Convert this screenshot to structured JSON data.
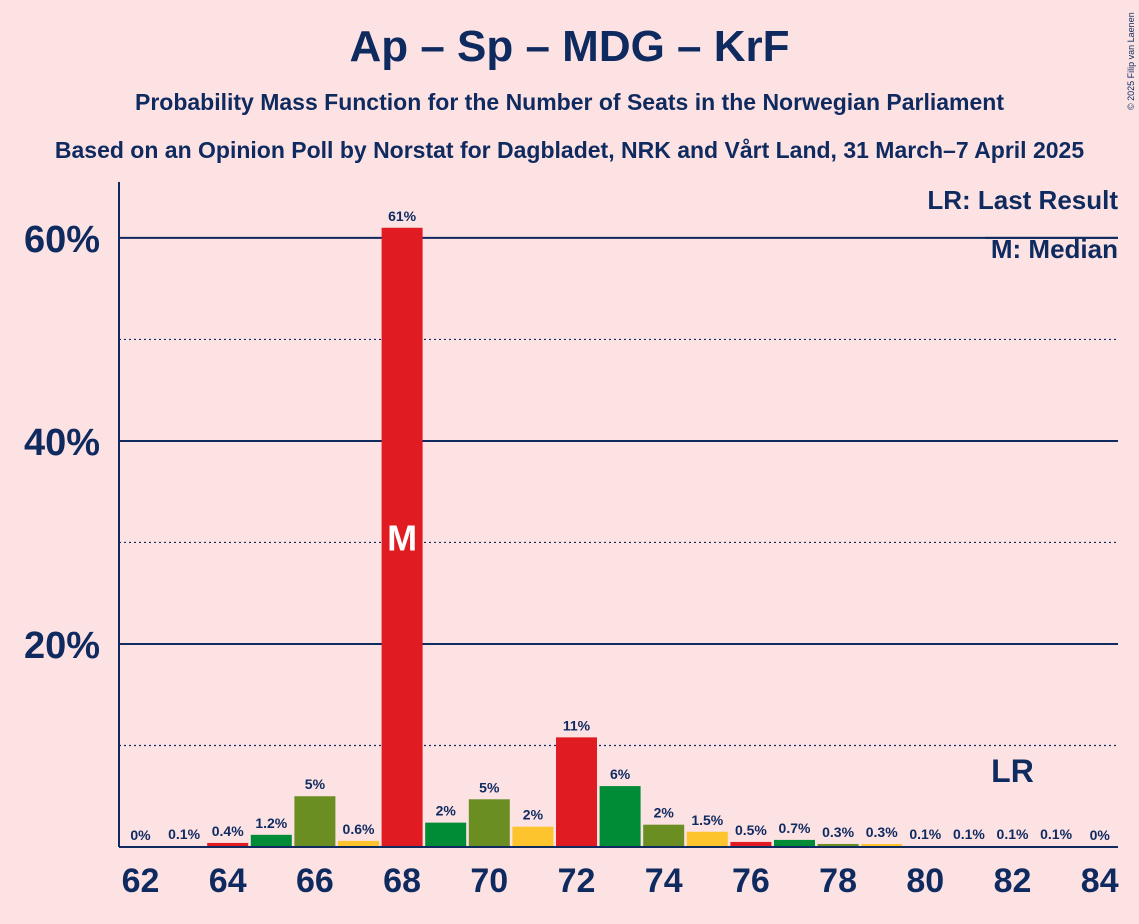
{
  "title": "Ap – Sp – MDG – KrF",
  "subtitle": "Probability Mass Function for the Number of Seats in the Norwegian Parliament",
  "source": "Based on an Opinion Poll by Norstat for Dagbladet, NRK and Vårt Land, 31 March–7 April 2025",
  "copyright": "© 2025 Filip van Laenen",
  "legend": {
    "last_result": "LR: Last Result",
    "median": "M: Median"
  },
  "markers": {
    "median_label": "M",
    "last_result_label": "LR"
  },
  "colors": {
    "background": "#fde2e4",
    "text": "#0e2a5f",
    "Ap": "#e01b22",
    "Sp": "#6b8e23",
    "MDG": "#008c37",
    "KrF": "#fdc42e"
  },
  "chart_data": {
    "type": "bar",
    "title": "Ap – Sp – MDG – KrF",
    "xlabel": "",
    "ylabel": "",
    "ylim": [
      0,
      66
    ],
    "yticks": [
      {
        "value": 20,
        "label": "20%"
      },
      {
        "value": 40,
        "label": "40%"
      },
      {
        "value": 60,
        "label": "60%"
      }
    ],
    "minor_grid": [
      10,
      30,
      50
    ],
    "xticks": [
      62,
      64,
      66,
      68,
      70,
      72,
      74,
      76,
      78,
      80,
      82,
      84
    ],
    "median": 68,
    "last_result": 82,
    "bars": [
      {
        "seats": 62,
        "value": 0,
        "label": "0%",
        "party": "Ap"
      },
      {
        "seats": 63,
        "value": 0.1,
        "label": "0.1%",
        "party": "Ap"
      },
      {
        "seats": 64,
        "value": 0.4,
        "label": "0.4%",
        "party": "Ap"
      },
      {
        "seats": 65,
        "value": 1.2,
        "label": "1.2%",
        "party": "MDG"
      },
      {
        "seats": 66,
        "value": 5,
        "label": "5%",
        "party": "Sp"
      },
      {
        "seats": 67,
        "value": 0.6,
        "label": "0.6%",
        "party": "KrF"
      },
      {
        "seats": 68,
        "value": 61,
        "label": "61%",
        "party": "Ap"
      },
      {
        "seats": 69,
        "value": 2.4,
        "label": "2%",
        "party": "MDG"
      },
      {
        "seats": 70,
        "value": 4.7,
        "label": "5%",
        "party": "Sp"
      },
      {
        "seats": 71,
        "value": 2,
        "label": "2%",
        "party": "KrF"
      },
      {
        "seats": 72,
        "value": 10.8,
        "label": "11%",
        "party": "Ap"
      },
      {
        "seats": 73,
        "value": 6,
        "label": "6%",
        "party": "MDG"
      },
      {
        "seats": 74,
        "value": 2.2,
        "label": "2%",
        "party": "Sp"
      },
      {
        "seats": 75,
        "value": 1.5,
        "label": "1.5%",
        "party": "KrF"
      },
      {
        "seats": 76,
        "value": 0.5,
        "label": "0.5%",
        "party": "Ap"
      },
      {
        "seats": 77,
        "value": 0.7,
        "label": "0.7%",
        "party": "MDG"
      },
      {
        "seats": 78,
        "value": 0.3,
        "label": "0.3%",
        "party": "Sp"
      },
      {
        "seats": 79,
        "value": 0.3,
        "label": "0.3%",
        "party": "KrF"
      },
      {
        "seats": 80,
        "value": 0.1,
        "label": "0.1%",
        "party": "Ap"
      },
      {
        "seats": 81,
        "value": 0.1,
        "label": "0.1%",
        "party": "MDG"
      },
      {
        "seats": 82,
        "value": 0.1,
        "label": "0.1%",
        "party": "Sp"
      },
      {
        "seats": 83,
        "value": 0.1,
        "label": "0.1%",
        "party": "KrF"
      },
      {
        "seats": 84,
        "value": 0,
        "label": "0%",
        "party": "Ap"
      }
    ]
  }
}
